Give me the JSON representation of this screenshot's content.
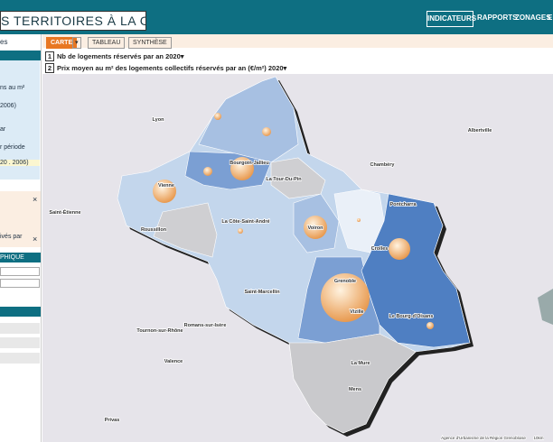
{
  "header": {
    "title": "S TERRITOIRES À LA CARTE",
    "nav": [
      "INDICATEURS",
      "RAPPORTS",
      "ZONAGES",
      "E"
    ]
  },
  "sidebar": {
    "heading": "es",
    "items": [
      "ns au m²",
      "2006)",
      "ar",
      "r période",
      "20 . 2006)"
    ],
    "layer_item": "ivés par",
    "section": "PHIQUE",
    "close": "×"
  },
  "tabs": [
    "CARTE",
    "TABLEAU",
    "SYNTHÈSE"
  ],
  "layers": [
    {
      "index": "1",
      "label": "Nb de logements réservés par an",
      "year": "2020"
    },
    {
      "index": "2",
      "label": "Prix moyen au m² des logements collectifs réservés par an (€/m²)",
      "year": "2020"
    }
  ],
  "map": {
    "places": [
      "Lyon",
      "Albertville",
      "Chambéry",
      "Bourgoin-Jallieu",
      "Vienne",
      "La Tour-Du-Pin",
      "Saint-Étienne",
      "Pontcharra",
      "La Côte-Saint-André",
      "Voiron",
      "Roussillon",
      "Crolles",
      "Saint-Marcellin",
      "Grenoble",
      "Vizille",
      "Le Bourg-d'Oisans",
      "Romans-sur-Isère",
      "Tournon-sur-Rhône",
      "Valence",
      "La Mure",
      "Mens",
      "Privas"
    ],
    "attribution": "Agence d'Urbanisme de la Région Grenobloise",
    "scale": "10km"
  }
}
